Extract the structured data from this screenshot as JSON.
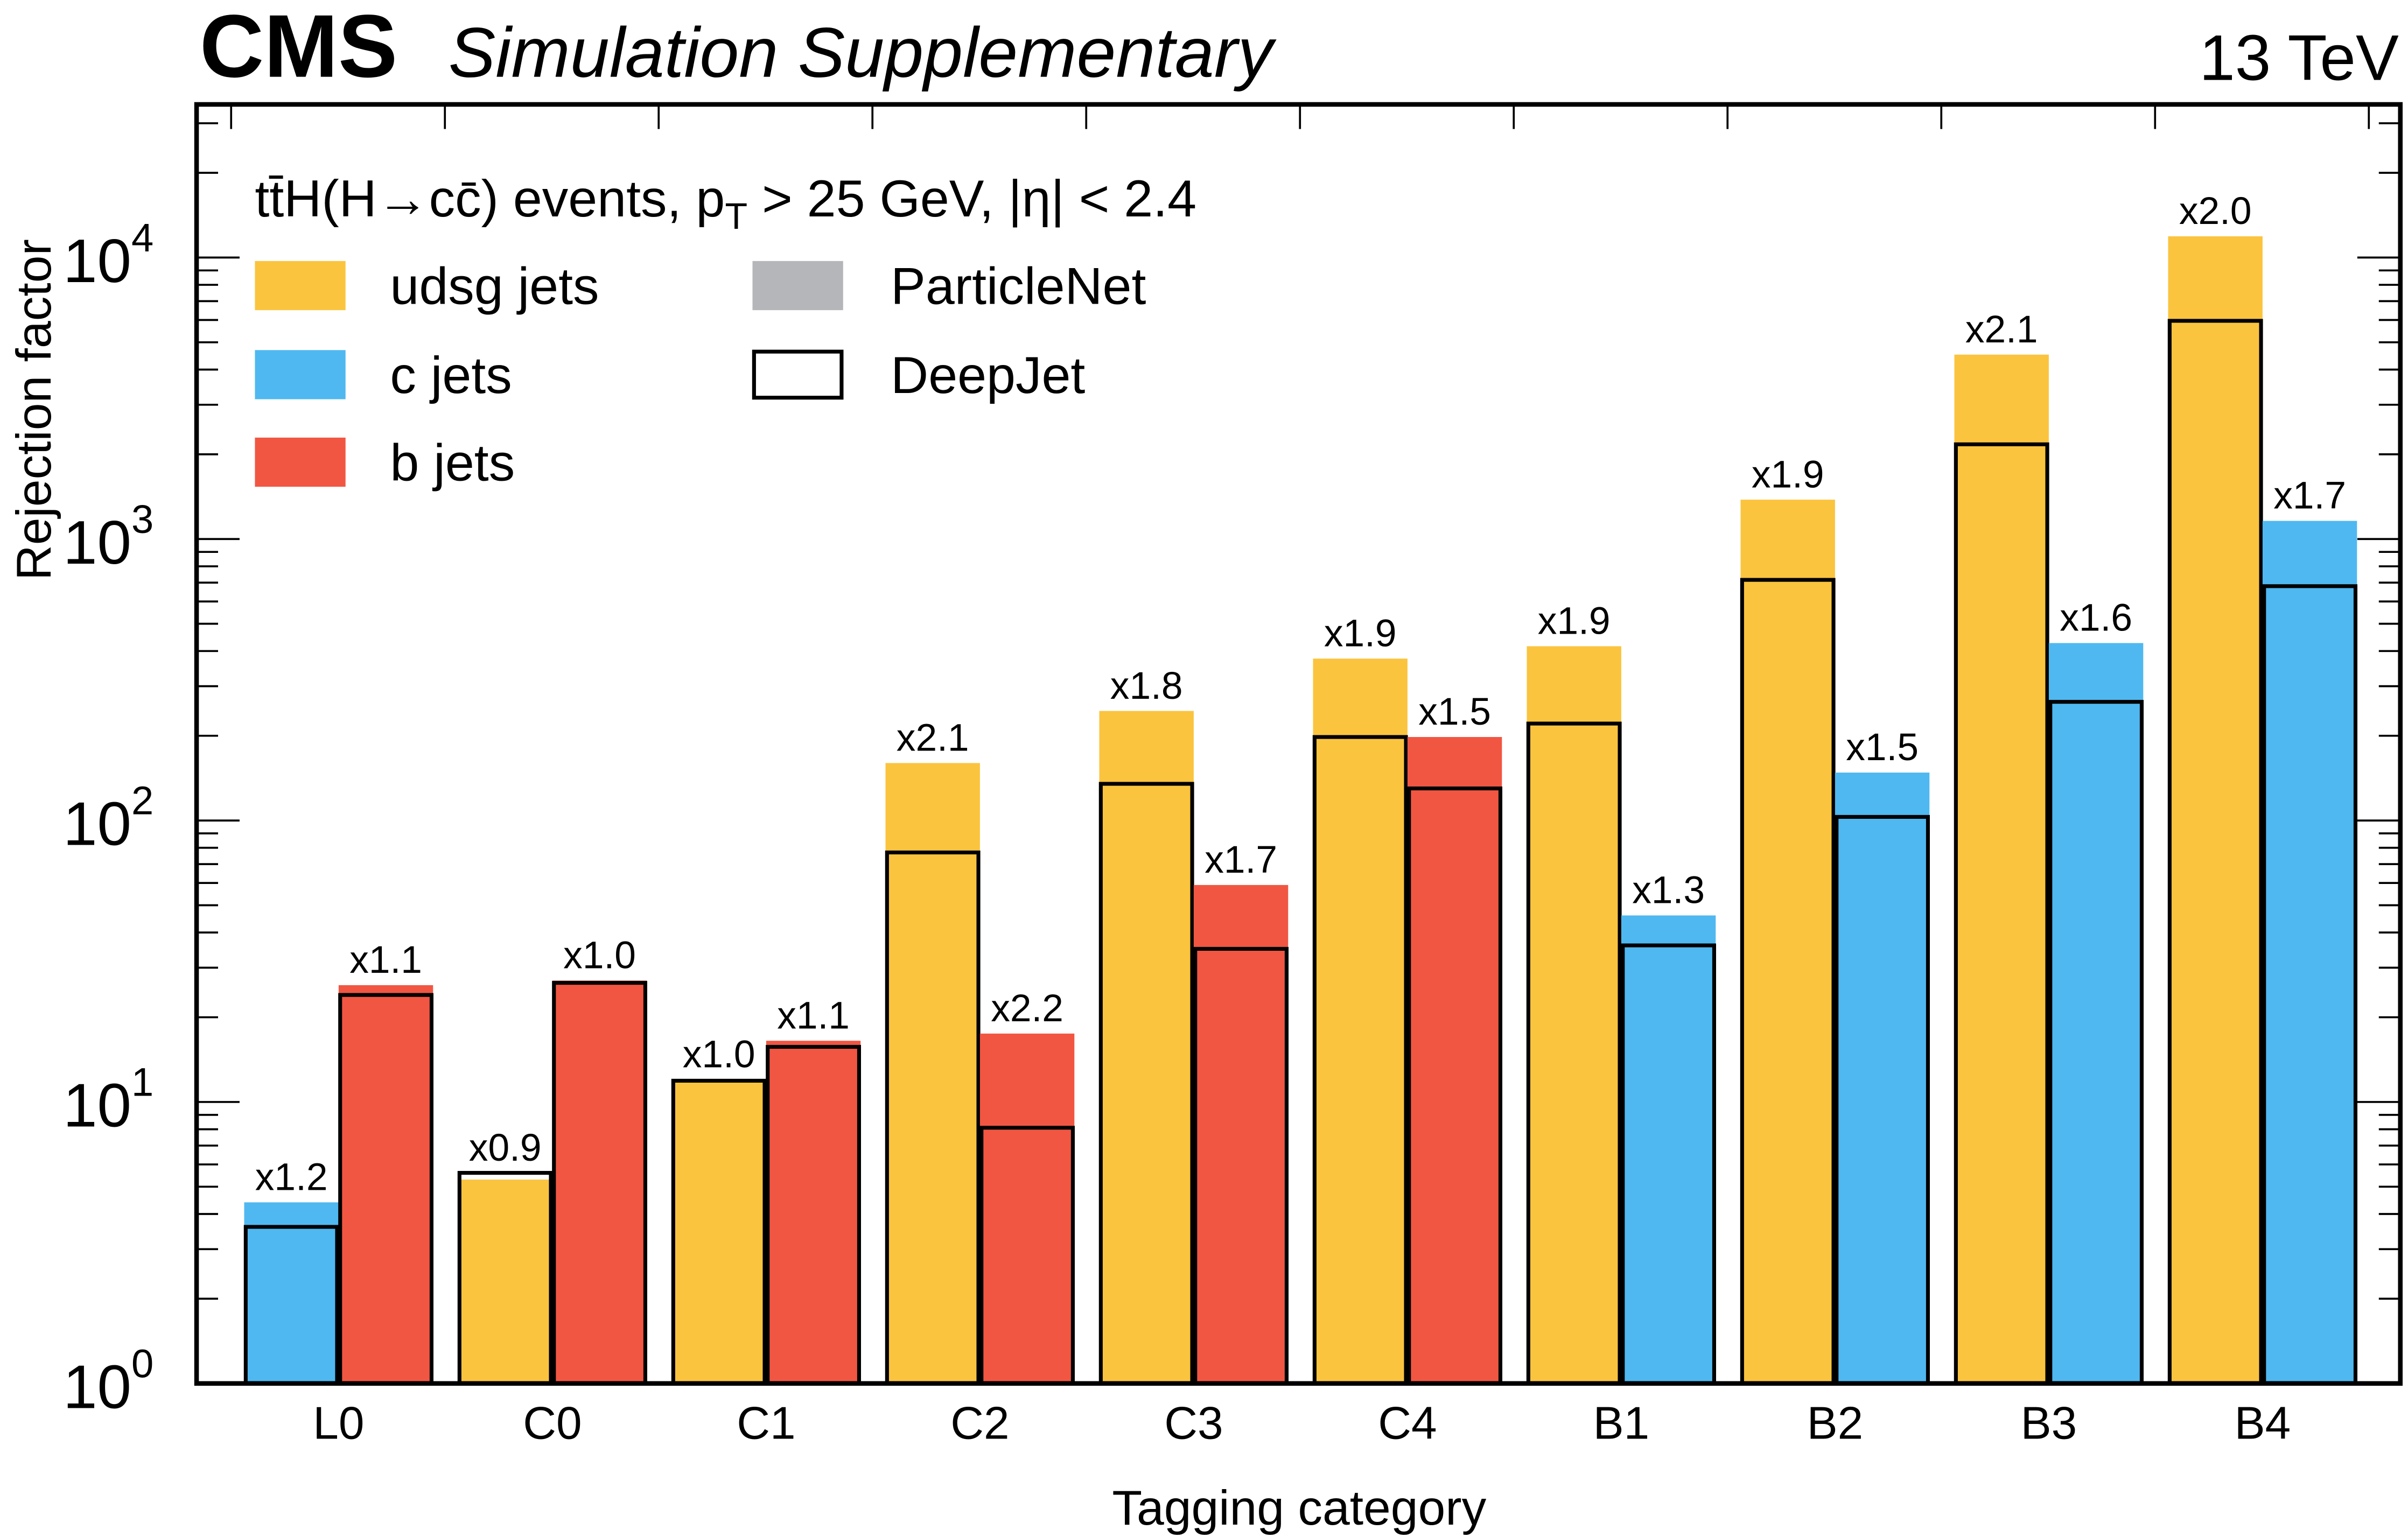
{
  "header": {
    "experiment": "CMS",
    "subtitle": "Simulation Supplementary",
    "energy": "13 TeV"
  },
  "legend": {
    "header": "tt̄H(H→cc̄) events, pT > 25 GeV, |η| < 2.4",
    "header_parts": {
      "process": "tt̄H(H→cc̄) events, p",
      "pt_sub": "T",
      "cuts": " > 25 GeV, |η| < 2.4"
    },
    "entries": [
      {
        "label": "udsg jets",
        "color": "#FBC43F",
        "style": "fill"
      },
      {
        "label": "c jets",
        "color": "#4FB8F0",
        "style": "fill"
      },
      {
        "label": "b jets",
        "color": "#F15642",
        "style": "fill"
      },
      {
        "label": "ParticleNet",
        "color": "#B5B6BA",
        "style": "fill"
      },
      {
        "label": "DeepJet",
        "color": "#000000",
        "style": "outline"
      }
    ]
  },
  "chart_data": {
    "type": "bar",
    "title": "",
    "xlabel": "Tagging category",
    "ylabel": "Rejection factor",
    "yscale": "log",
    "ylim": [
      1,
      35000
    ],
    "yticks": [
      {
        "base": "10",
        "exp": "0",
        "value": 1
      },
      {
        "base": "10",
        "exp": "1",
        "value": 10
      },
      {
        "base": "10",
        "exp": "2",
        "value": 100
      },
      {
        "base": "10",
        "exp": "3",
        "value": 1000
      },
      {
        "base": "10",
        "exp": "4",
        "value": 10000
      }
    ],
    "categories": [
      "L0",
      "C0",
      "C1",
      "C2",
      "C3",
      "C4",
      "B1",
      "B2",
      "B3",
      "B4"
    ],
    "legend_position": "top-left",
    "colors": {
      "udsg": "#FBC43F",
      "c": "#4FB8F0",
      "b": "#F15642"
    },
    "groups": [
      {
        "category": "L0",
        "bars": [
          {
            "flavour": "c",
            "particlenet": 4.4,
            "deepjet": 3.6,
            "ratio_label": "x1.2"
          },
          {
            "flavour": "b",
            "particlenet": 26,
            "deepjet": 24,
            "ratio_label": "x1.1"
          }
        ]
      },
      {
        "category": "C0",
        "bars": [
          {
            "flavour": "udsg",
            "particlenet": 5.3,
            "deepjet": 5.6,
            "ratio_label": "x0.9"
          },
          {
            "flavour": "b",
            "particlenet": 27,
            "deepjet": 26.5,
            "ratio_label": "x1.0"
          }
        ]
      },
      {
        "category": "C1",
        "bars": [
          {
            "flavour": "udsg",
            "particlenet": 12,
            "deepjet": 11.9,
            "ratio_label": "x1.0"
          },
          {
            "flavour": "b",
            "particlenet": 16.5,
            "deepjet": 15.7,
            "ratio_label": "x1.1"
          }
        ]
      },
      {
        "category": "C2",
        "bars": [
          {
            "flavour": "udsg",
            "particlenet": 160,
            "deepjet": 77,
            "ratio_label": "x2.1"
          },
          {
            "flavour": "b",
            "particlenet": 17.5,
            "deepjet": 8.1,
            "ratio_label": "x2.2"
          }
        ]
      },
      {
        "category": "C3",
        "bars": [
          {
            "flavour": "udsg",
            "particlenet": 245,
            "deepjet": 135,
            "ratio_label": "x1.8"
          },
          {
            "flavour": "b",
            "particlenet": 59,
            "deepjet": 35,
            "ratio_label": "x1.7"
          }
        ]
      },
      {
        "category": "C4",
        "bars": [
          {
            "flavour": "udsg",
            "particlenet": 376,
            "deepjet": 198,
            "ratio_label": "x1.9"
          },
          {
            "flavour": "b",
            "particlenet": 198,
            "deepjet": 130,
            "ratio_label": "x1.5"
          }
        ]
      },
      {
        "category": "B1",
        "bars": [
          {
            "flavour": "udsg",
            "particlenet": 416,
            "deepjet": 221,
            "ratio_label": "x1.9"
          },
          {
            "flavour": "c",
            "particlenet": 46,
            "deepjet": 36,
            "ratio_label": "x1.3"
          }
        ]
      },
      {
        "category": "B2",
        "bars": [
          {
            "flavour": "udsg",
            "particlenet": 1380,
            "deepjet": 716,
            "ratio_label": "x1.9"
          },
          {
            "flavour": "c",
            "particlenet": 148,
            "deepjet": 103,
            "ratio_label": "x1.5"
          }
        ]
      },
      {
        "category": "B3",
        "bars": [
          {
            "flavour": "udsg",
            "particlenet": 4520,
            "deepjet": 2170,
            "ratio_label": "x2.1"
          },
          {
            "flavour": "c",
            "particlenet": 427,
            "deepjet": 264,
            "ratio_label": "x1.6"
          }
        ]
      },
      {
        "category": "B4",
        "bars": [
          {
            "flavour": "udsg",
            "particlenet": 11900,
            "deepjet": 5960,
            "ratio_label": "x2.0"
          },
          {
            "flavour": "c",
            "particlenet": 1160,
            "deepjet": 680,
            "ratio_label": "x1.7"
          }
        ]
      }
    ]
  }
}
